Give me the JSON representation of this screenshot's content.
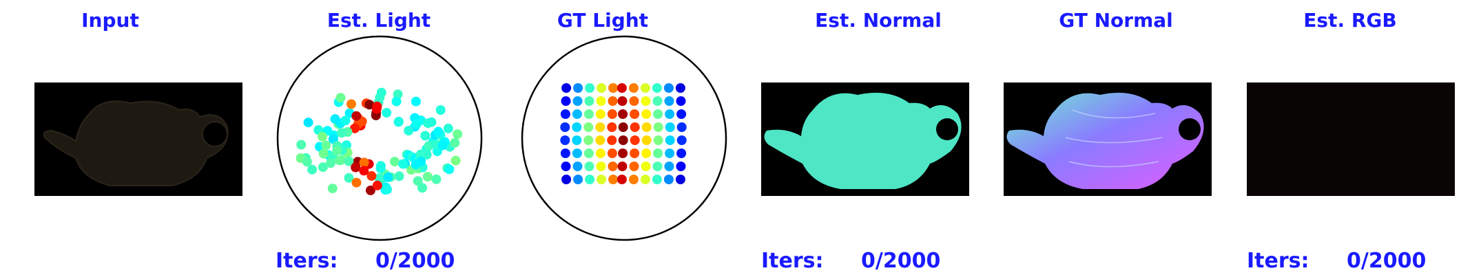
{
  "panels": {
    "input": "Input",
    "est_light": "Est. Light",
    "gt_light": "GT Light",
    "est_normal": "Est. Normal",
    "gt_normal": "GT Normal",
    "est_rgb": "Est. RGB"
  },
  "iters": {
    "label": "Iters:",
    "value": "0/2000"
  },
  "colors": {
    "title": "#1a1aff",
    "panel_bg": "#000000",
    "est_normal_fill": "#4fe6c6",
    "circle_stroke": "#000000"
  },
  "icons": {
    "teapot_silhouette": "teapot-icon"
  }
}
